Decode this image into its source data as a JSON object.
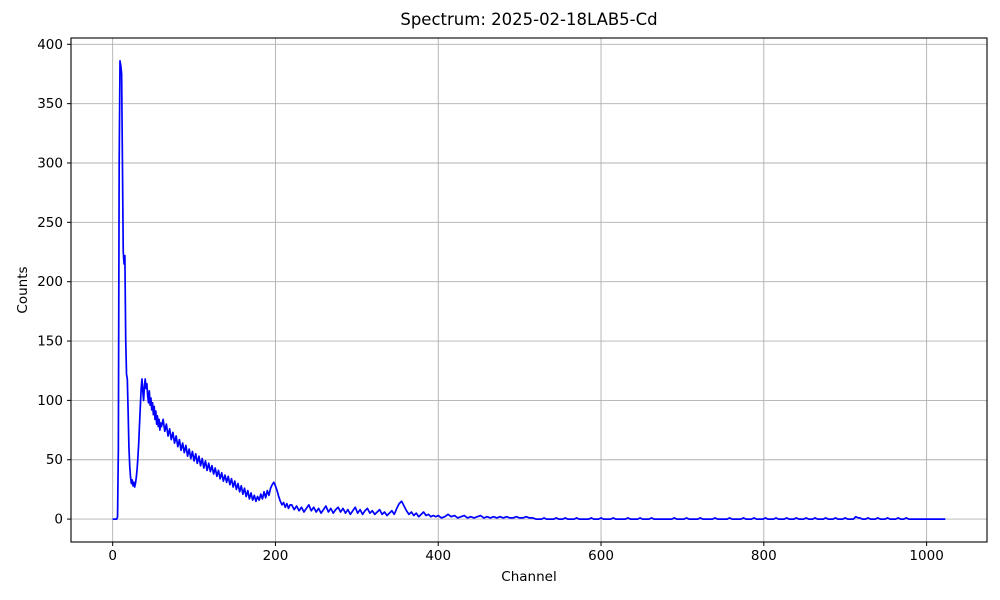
{
  "chart_data": {
    "type": "line",
    "title": "Spectrum: 2025-02-18LAB5-Cd",
    "xlabel": "Channel",
    "ylabel": "Counts",
    "xlim": [
      -51.2,
      1074.2
    ],
    "ylim": [
      -19.3,
      405.3
    ],
    "xticks": [
      0,
      200,
      400,
      600,
      800,
      1000
    ],
    "yticks": [
      0,
      50,
      100,
      150,
      200,
      250,
      300,
      350,
      400
    ],
    "grid": true,
    "legend": "none",
    "line_color": "#0000ff",
    "grid_color": "#b0b0b0",
    "frame_color": "#000000",
    "background_color": "#ffffff",
    "x_range_of_data": [
      0,
      1023
    ],
    "peak_max_counts": 386,
    "points": [
      [
        0,
        0
      ],
      [
        1,
        0
      ],
      [
        2,
        0
      ],
      [
        3,
        0
      ],
      [
        4,
        0
      ],
      [
        5,
        0
      ],
      [
        6,
        2
      ],
      [
        7,
        60
      ],
      [
        8,
        300
      ],
      [
        9,
        386
      ],
      [
        10,
        382
      ],
      [
        11,
        375
      ],
      [
        12,
        300
      ],
      [
        13,
        225
      ],
      [
        14,
        215
      ],
      [
        15,
        222
      ],
      [
        16,
        152
      ],
      [
        17,
        122
      ],
      [
        18,
        118
      ],
      [
        19,
        90
      ],
      [
        20,
        60
      ],
      [
        21,
        44
      ],
      [
        22,
        35
      ],
      [
        23,
        30
      ],
      [
        24,
        33
      ],
      [
        25,
        28
      ],
      [
        26,
        31
      ],
      [
        27,
        27
      ],
      [
        28,
        30
      ],
      [
        29,
        35
      ],
      [
        30,
        42
      ],
      [
        31,
        52
      ],
      [
        32,
        64
      ],
      [
        33,
        80
      ],
      [
        34,
        95
      ],
      [
        35,
        110
      ],
      [
        36,
        118
      ],
      [
        37,
        108
      ],
      [
        38,
        100
      ],
      [
        39,
        112
      ],
      [
        40,
        118
      ],
      [
        41,
        110
      ],
      [
        42,
        114
      ],
      [
        43,
        104
      ],
      [
        44,
        98
      ],
      [
        45,
        108
      ],
      [
        46,
        96
      ],
      [
        47,
        102
      ],
      [
        48,
        92
      ],
      [
        49,
        98
      ],
      [
        50,
        88
      ],
      [
        51,
        95
      ],
      [
        52,
        84
      ],
      [
        53,
        91
      ],
      [
        54,
        80
      ],
      [
        55,
        87
      ],
      [
        56,
        78
      ],
      [
        57,
        84
      ],
      [
        58,
        75
      ],
      [
        59,
        81
      ],
      [
        60,
        78
      ],
      [
        62,
        84
      ],
      [
        64,
        74
      ],
      [
        66,
        80
      ],
      [
        68,
        70
      ],
      [
        70,
        76
      ],
      [
        72,
        67
      ],
      [
        74,
        73
      ],
      [
        76,
        64
      ],
      [
        78,
        70
      ],
      [
        80,
        61
      ],
      [
        82,
        67
      ],
      [
        84,
        58
      ],
      [
        86,
        64
      ],
      [
        88,
        56
      ],
      [
        90,
        62
      ],
      [
        92,
        53
      ],
      [
        94,
        59
      ],
      [
        96,
        51
      ],
      [
        98,
        57
      ],
      [
        100,
        49
      ],
      [
        102,
        55
      ],
      [
        104,
        47
      ],
      [
        106,
        53
      ],
      [
        108,
        45
      ],
      [
        110,
        51
      ],
      [
        112,
        43
      ],
      [
        114,
        49
      ],
      [
        116,
        41
      ],
      [
        118,
        47
      ],
      [
        120,
        40
      ],
      [
        122,
        45
      ],
      [
        124,
        38
      ],
      [
        126,
        43
      ],
      [
        128,
        36
      ],
      [
        130,
        41
      ],
      [
        132,
        34
      ],
      [
        134,
        39
      ],
      [
        136,
        32
      ],
      [
        138,
        37
      ],
      [
        140,
        31
      ],
      [
        142,
        36
      ],
      [
        144,
        29
      ],
      [
        146,
        34
      ],
      [
        148,
        27
      ],
      [
        150,
        32
      ],
      [
        152,
        25
      ],
      [
        154,
        30
      ],
      [
        156,
        23
      ],
      [
        158,
        28
      ],
      [
        160,
        21
      ],
      [
        162,
        26
      ],
      [
        164,
        19
      ],
      [
        166,
        24
      ],
      [
        168,
        17
      ],
      [
        170,
        22
      ],
      [
        172,
        16
      ],
      [
        174,
        20
      ],
      [
        176,
        15
      ],
      [
        178,
        19
      ],
      [
        180,
        16
      ],
      [
        182,
        21
      ],
      [
        184,
        17
      ],
      [
        186,
        23
      ],
      [
        188,
        18
      ],
      [
        190,
        24
      ],
      [
        192,
        20
      ],
      [
        194,
        26
      ],
      [
        196,
        29
      ],
      [
        198,
        31
      ],
      [
        200,
        28
      ],
      [
        202,
        24
      ],
      [
        204,
        19
      ],
      [
        206,
        15
      ],
      [
        208,
        12
      ],
      [
        210,
        14
      ],
      [
        212,
        10
      ],
      [
        214,
        13
      ],
      [
        216,
        9
      ],
      [
        218,
        12
      ],
      [
        220,
        12
      ],
      [
        223,
        8
      ],
      [
        226,
        11
      ],
      [
        229,
        7
      ],
      [
        232,
        10
      ],
      [
        235,
        6
      ],
      [
        238,
        9
      ],
      [
        241,
        12
      ],
      [
        244,
        7
      ],
      [
        247,
        10
      ],
      [
        250,
        6
      ],
      [
        253,
        9
      ],
      [
        256,
        5
      ],
      [
        259,
        8
      ],
      [
        262,
        11
      ],
      [
        265,
        6
      ],
      [
        268,
        9
      ],
      [
        271,
        5
      ],
      [
        274,
        8
      ],
      [
        277,
        10
      ],
      [
        280,
        6
      ],
      [
        283,
        9
      ],
      [
        286,
        5
      ],
      [
        289,
        8
      ],
      [
        292,
        4
      ],
      [
        295,
        7
      ],
      [
        298,
        10
      ],
      [
        301,
        5
      ],
      [
        304,
        8
      ],
      [
        307,
        4
      ],
      [
        310,
        7
      ],
      [
        313,
        9
      ],
      [
        316,
        5
      ],
      [
        319,
        7
      ],
      [
        322,
        4
      ],
      [
        325,
        6
      ],
      [
        328,
        8
      ],
      [
        331,
        4
      ],
      [
        334,
        6
      ],
      [
        337,
        3
      ],
      [
        340,
        5
      ],
      [
        343,
        7
      ],
      [
        346,
        4
      ],
      [
        349,
        9
      ],
      [
        352,
        13
      ],
      [
        355,
        15
      ],
      [
        358,
        11
      ],
      [
        361,
        7
      ],
      [
        364,
        4
      ],
      [
        367,
        6
      ],
      [
        370,
        3
      ],
      [
        373,
        5
      ],
      [
        376,
        2
      ],
      [
        379,
        4
      ],
      [
        382,
        6
      ],
      [
        385,
        3
      ],
      [
        388,
        4
      ],
      [
        391,
        2
      ],
      [
        394,
        3
      ],
      [
        397,
        2
      ],
      [
        400,
        3
      ],
      [
        404,
        1
      ],
      [
        408,
        2
      ],
      [
        412,
        4
      ],
      [
        416,
        2
      ],
      [
        420,
        3
      ],
      [
        424,
        1
      ],
      [
        428,
        2
      ],
      [
        432,
        3
      ],
      [
        436,
        1
      ],
      [
        440,
        2
      ],
      [
        444,
        1
      ],
      [
        448,
        2
      ],
      [
        452,
        3
      ],
      [
        456,
        1
      ],
      [
        460,
        2
      ],
      [
        464,
        1
      ],
      [
        468,
        2
      ],
      [
        472,
        1
      ],
      [
        476,
        2
      ],
      [
        480,
        1
      ],
      [
        484,
        2
      ],
      [
        488,
        1
      ],
      [
        492,
        1
      ],
      [
        496,
        2
      ],
      [
        500,
        1
      ],
      [
        504,
        1
      ],
      [
        508,
        2
      ],
      [
        512,
        1
      ],
      [
        516,
        1
      ],
      [
        520,
        0
      ],
      [
        524,
        0
      ],
      [
        527,
        0
      ],
      [
        530,
        1
      ],
      [
        533,
        0
      ],
      [
        542,
        0
      ],
      [
        545,
        1
      ],
      [
        548,
        0
      ],
      [
        553,
        0
      ],
      [
        556,
        1
      ],
      [
        559,
        0
      ],
      [
        567,
        0
      ],
      [
        570,
        1
      ],
      [
        573,
        0
      ],
      [
        585,
        0
      ],
      [
        588,
        1
      ],
      [
        591,
        0
      ],
      [
        597,
        0
      ],
      [
        600,
        1
      ],
      [
        603,
        0
      ],
      [
        612,
        0
      ],
      [
        615,
        1
      ],
      [
        618,
        0
      ],
      [
        630,
        0
      ],
      [
        633,
        1
      ],
      [
        636,
        0
      ],
      [
        645,
        0
      ],
      [
        648,
        1
      ],
      [
        651,
        0
      ],
      [
        659,
        0
      ],
      [
        662,
        1
      ],
      [
        665,
        0
      ],
      [
        687,
        0
      ],
      [
        690,
        1
      ],
      [
        693,
        0
      ],
      [
        702,
        0
      ],
      [
        705,
        1
      ],
      [
        708,
        0
      ],
      [
        719,
        0
      ],
      [
        722,
        1
      ],
      [
        725,
        0
      ],
      [
        737,
        0
      ],
      [
        740,
        1
      ],
      [
        743,
        0
      ],
      [
        755,
        0
      ],
      [
        758,
        1
      ],
      [
        761,
        0
      ],
      [
        772,
        0
      ],
      [
        775,
        1
      ],
      [
        778,
        0
      ],
      [
        785,
        0
      ],
      [
        788,
        1
      ],
      [
        791,
        0
      ],
      [
        799,
        0
      ],
      [
        802,
        1
      ],
      [
        805,
        0
      ],
      [
        812,
        0
      ],
      [
        815,
        1
      ],
      [
        818,
        0
      ],
      [
        825,
        0
      ],
      [
        828,
        1
      ],
      [
        831,
        0
      ],
      [
        837,
        0
      ],
      [
        840,
        1
      ],
      [
        843,
        0
      ],
      [
        849,
        0
      ],
      [
        852,
        1
      ],
      [
        855,
        0
      ],
      [
        860,
        0
      ],
      [
        863,
        1
      ],
      [
        866,
        0
      ],
      [
        873,
        0
      ],
      [
        876,
        1
      ],
      [
        879,
        0
      ],
      [
        885,
        0
      ],
      [
        888,
        1
      ],
      [
        891,
        0
      ],
      [
        897,
        0
      ],
      [
        900,
        1
      ],
      [
        903,
        0
      ],
      [
        910,
        0
      ],
      [
        913,
        2
      ],
      [
        916,
        1
      ],
      [
        918,
        1
      ],
      [
        921,
        0
      ],
      [
        925,
        0
      ],
      [
        928,
        1
      ],
      [
        931,
        0
      ],
      [
        937,
        0
      ],
      [
        940,
        1
      ],
      [
        943,
        0
      ],
      [
        949,
        0
      ],
      [
        952,
        1
      ],
      [
        955,
        0
      ],
      [
        962,
        0
      ],
      [
        965,
        1
      ],
      [
        968,
        0
      ],
      [
        972,
        0
      ],
      [
        975,
        1
      ],
      [
        978,
        0
      ],
      [
        990,
        0
      ],
      [
        1005,
        0
      ],
      [
        1023,
        0
      ]
    ]
  }
}
